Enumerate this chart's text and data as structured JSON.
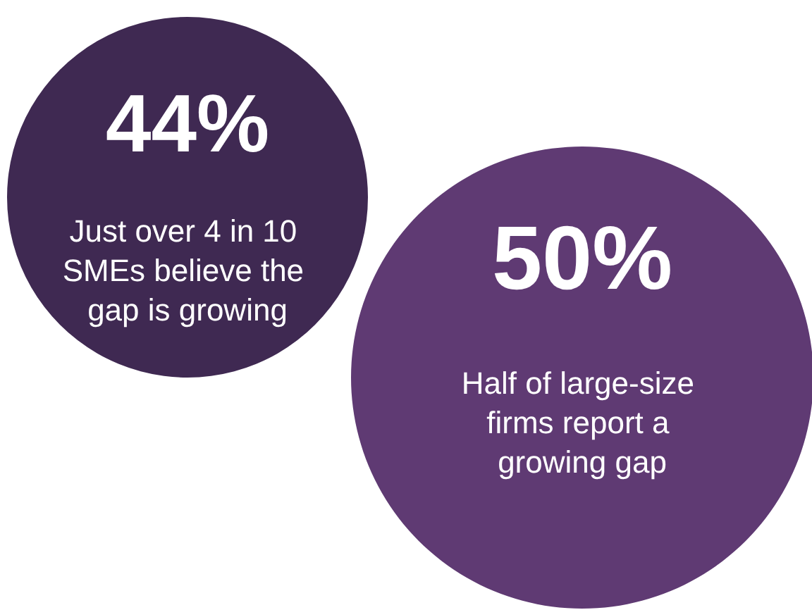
{
  "chart_data": {
    "type": "other",
    "categories": [
      "Just over 4 in 10 SMEs believe the gap is growing",
      "Half of large-size firms report a growing gap"
    ],
    "values": [
      44,
      50
    ],
    "value_labels": [
      "44%",
      "50%"
    ],
    "colors": [
      "#3f2952",
      "#5f3a73"
    ]
  }
}
